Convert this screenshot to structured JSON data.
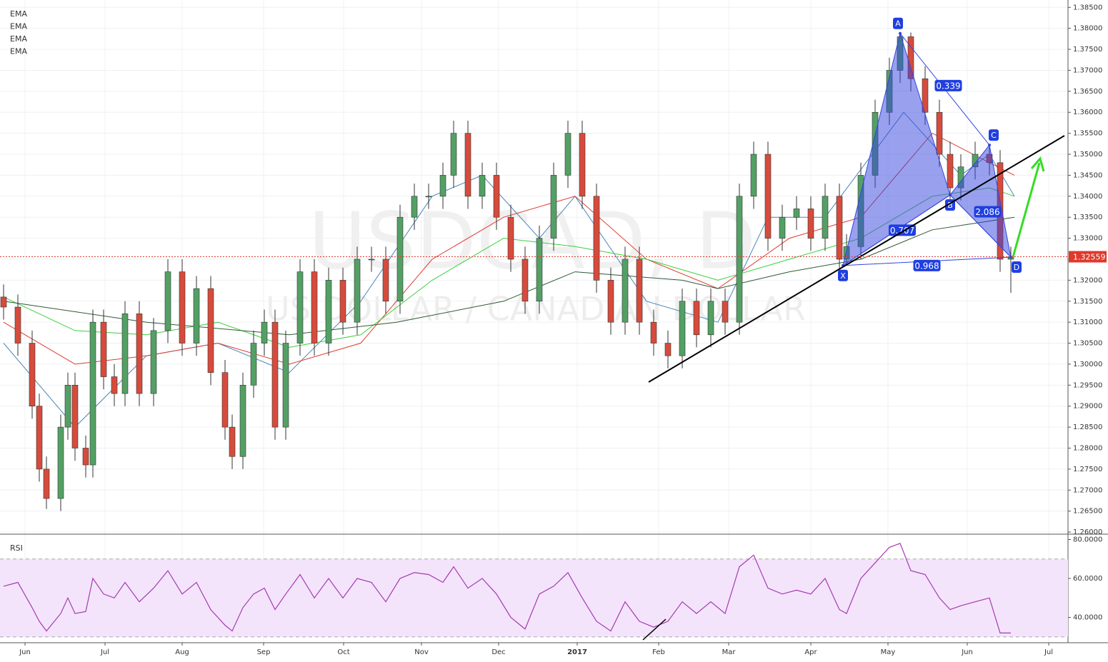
{
  "chart_data": [
    {
      "type": "candlestick",
      "watermark": {
        "symbol": "USDCAD, D",
        "description": "US DOLLAR / CANADIAN DOLLAR"
      },
      "xlim": [
        0,
        298
      ],
      "xticks": [
        {
          "value": 6,
          "label": "Jun"
        },
        {
          "value": 28.4,
          "label": "Jul"
        },
        {
          "value": 50,
          "label": "Aug"
        },
        {
          "value": 72.8,
          "label": "Sep"
        },
        {
          "value": 95.2,
          "label": "Oct"
        },
        {
          "value": 117,
          "label": "Nov"
        },
        {
          "value": 138.6,
          "label": "Dec"
        },
        {
          "value": 160.6,
          "label": "2017"
        },
        {
          "value": 183.4,
          "label": "Feb"
        },
        {
          "value": 203,
          "label": "Mar"
        },
        {
          "value": 226,
          "label": "Apr"
        },
        {
          "value": 247.6,
          "label": "May"
        },
        {
          "value": 269.8,
          "label": "Jun"
        },
        {
          "value": 292.6,
          "label": "Jul"
        }
      ],
      "ylim": [
        1.2595,
        1.3859
      ],
      "yticks": [
        {
          "value": 1.26,
          "label": "1.26000"
        },
        {
          "value": 1.265,
          "label": "1.26500"
        },
        {
          "value": 1.27,
          "label": "1.27000"
        },
        {
          "value": 1.275,
          "label": "1.27500"
        },
        {
          "value": 1.28,
          "label": "1.28000"
        },
        {
          "value": 1.285,
          "label": "1.28500"
        },
        {
          "value": 1.29,
          "label": "1.29000"
        },
        {
          "value": 1.295,
          "label": "1.29500"
        },
        {
          "value": 1.3,
          "label": "1.30000"
        },
        {
          "value": 1.305,
          "label": "1.30500"
        },
        {
          "value": 1.31,
          "label": "1.31000"
        },
        {
          "value": 1.315,
          "label": "1.31500"
        },
        {
          "value": 1.32,
          "label": "1.32000"
        },
        {
          "value": 1.325,
          "label": "1.32500"
        },
        {
          "value": 1.33,
          "label": "1.33000"
        },
        {
          "value": 1.335,
          "label": "1.33500"
        },
        {
          "value": 1.34,
          "label": "1.34000"
        },
        {
          "value": 1.345,
          "label": "1.34500"
        },
        {
          "value": 1.35,
          "label": "1.35000"
        },
        {
          "value": 1.355,
          "label": "1.35500"
        },
        {
          "value": 1.36,
          "label": "1.36000"
        },
        {
          "value": 1.365,
          "label": "1.36500"
        },
        {
          "value": 1.37,
          "label": "1.37000"
        },
        {
          "value": 1.375,
          "label": "1.37500"
        },
        {
          "value": 1.38,
          "label": "1.38000"
        },
        {
          "value": 1.385,
          "label": "1.38500"
        }
      ],
      "grid": true,
      "up_color": "#53a064",
      "down_color": "#d64b3c",
      "last_price": 1.32559,
      "last_price_color": "#e0382b",
      "x": [
        0,
        4,
        8,
        10,
        12,
        16,
        18,
        20,
        23,
        25,
        28,
        31,
        34,
        38,
        42,
        46,
        50,
        54,
        58,
        62,
        64,
        67,
        70,
        73,
        76,
        79,
        83,
        87,
        91,
        95,
        99,
        103,
        107,
        111,
        115,
        119,
        123,
        126,
        130,
        134,
        138,
        142,
        146,
        150,
        154,
        158,
        162,
        166,
        170,
        174,
        178,
        182,
        186,
        190,
        194,
        198,
        202,
        206,
        210,
        214,
        218,
        222,
        226,
        230,
        234,
        236,
        240,
        244,
        248,
        251,
        254,
        258,
        262,
        265,
        268,
        272,
        276,
        279,
        282
      ],
      "open": [
        1.316,
        1.3136,
        1.305,
        1.29,
        1.275,
        1.268,
        1.285,
        1.295,
        1.28,
        1.276,
        1.31,
        1.297,
        1.293,
        1.312,
        1.293,
        1.308,
        1.322,
        1.305,
        1.318,
        1.298,
        1.285,
        1.278,
        1.295,
        1.305,
        1.31,
        1.285,
        1.305,
        1.322,
        1.305,
        1.32,
        1.31,
        1.325,
        1.325,
        1.315,
        1.335,
        1.34,
        1.34,
        1.345,
        1.355,
        1.34,
        1.345,
        1.335,
        1.325,
        1.315,
        1.33,
        1.345,
        1.355,
        1.34,
        1.32,
        1.31,
        1.325,
        1.31,
        1.305,
        1.302,
        1.315,
        1.307,
        1.315,
        1.31,
        1.34,
        1.35,
        1.33,
        1.335,
        1.337,
        1.33,
        1.34,
        1.325,
        1.328,
        1.345,
        1.36,
        1.37,
        1.378,
        1.368,
        1.36,
        1.35,
        1.342,
        1.347,
        1.35,
        1.348,
        1.325
      ],
      "high": [
        1.319,
        1.3166,
        1.308,
        1.293,
        1.278,
        1.288,
        1.298,
        1.298,
        1.283,
        1.313,
        1.313,
        1.3,
        1.315,
        1.315,
        1.311,
        1.325,
        1.325,
        1.321,
        1.321,
        1.301,
        1.288,
        1.298,
        1.308,
        1.313,
        1.313,
        1.308,
        1.325,
        1.325,
        1.323,
        1.323,
        1.328,
        1.328,
        1.328,
        1.338,
        1.343,
        1.343,
        1.348,
        1.358,
        1.358,
        1.348,
        1.348,
        1.338,
        1.328,
        1.333,
        1.348,
        1.358,
        1.358,
        1.343,
        1.323,
        1.328,
        1.328,
        1.313,
        1.308,
        1.318,
        1.318,
        1.318,
        1.318,
        1.343,
        1.353,
        1.353,
        1.338,
        1.34,
        1.34,
        1.343,
        1.343,
        1.331,
        1.348,
        1.363,
        1.373,
        1.3788,
        1.379,
        1.371,
        1.363,
        1.353,
        1.35,
        1.353,
        1.3522,
        1.351,
        1.328
      ],
      "low": [
        1.3106,
        1.302,
        1.287,
        1.272,
        1.2655,
        1.265,
        1.282,
        1.277,
        1.273,
        1.273,
        1.294,
        1.29,
        1.29,
        1.29,
        1.29,
        1.305,
        1.302,
        1.302,
        1.295,
        1.282,
        1.275,
        1.275,
        1.292,
        1.302,
        1.282,
        1.282,
        1.302,
        1.302,
        1.302,
        1.307,
        1.307,
        1.322,
        1.312,
        1.312,
        1.332,
        1.337,
        1.337,
        1.342,
        1.337,
        1.337,
        1.332,
        1.322,
        1.312,
        1.312,
        1.327,
        1.342,
        1.337,
        1.317,
        1.307,
        1.307,
        1.307,
        1.302,
        1.299,
        1.299,
        1.304,
        1.304,
        1.307,
        1.307,
        1.337,
        1.327,
        1.327,
        1.332,
        1.327,
        1.327,
        1.322,
        1.3235,
        1.325,
        1.342,
        1.357,
        1.367,
        1.365,
        1.357,
        1.347,
        1.339,
        1.339,
        1.344,
        1.345,
        1.322,
        1.317
      ],
      "close": [
        1.3136,
        1.305,
        1.29,
        1.275,
        1.268,
        1.285,
        1.295,
        1.28,
        1.276,
        1.31,
        1.297,
        1.293,
        1.312,
        1.293,
        1.308,
        1.322,
        1.305,
        1.318,
        1.298,
        1.285,
        1.278,
        1.295,
        1.305,
        1.31,
        1.285,
        1.305,
        1.322,
        1.305,
        1.32,
        1.31,
        1.325,
        1.325,
        1.315,
        1.335,
        1.34,
        1.34,
        1.345,
        1.355,
        1.34,
        1.345,
        1.335,
        1.325,
        1.315,
        1.33,
        1.345,
        1.355,
        1.34,
        1.32,
        1.31,
        1.325,
        1.31,
        1.305,
        1.302,
        1.315,
        1.307,
        1.315,
        1.31,
        1.34,
        1.35,
        1.33,
        1.335,
        1.337,
        1.33,
        1.34,
        1.325,
        1.328,
        1.345,
        1.36,
        1.37,
        1.378,
        1.368,
        1.36,
        1.35,
        1.342,
        1.347,
        1.35,
        1.348,
        1.325,
        1.3256
      ],
      "series": [
        {
          "name": "EMA",
          "color": "#4a86b8",
          "x": [
            0,
            20,
            40,
            60,
            80,
            100,
            120,
            134,
            150,
            160,
            180,
            200,
            214,
            230,
            252,
            268,
            276,
            283
          ],
          "values": [
            1.305,
            1.285,
            1.302,
            1.305,
            1.298,
            1.315,
            1.34,
            1.345,
            1.33,
            1.34,
            1.315,
            1.31,
            1.335,
            1.335,
            1.36,
            1.345,
            1.35,
            1.34
          ]
        },
        {
          "name": "EMA",
          "color": "#e03a2e",
          "x": [
            0,
            20,
            40,
            60,
            80,
            100,
            120,
            140,
            160,
            180,
            200,
            220,
            240,
            260,
            276,
            283
          ],
          "values": [
            1.31,
            1.3,
            1.302,
            1.305,
            1.3,
            1.305,
            1.325,
            1.335,
            1.34,
            1.325,
            1.318,
            1.33,
            1.335,
            1.355,
            1.348,
            1.345
          ]
        },
        {
          "name": "EMA",
          "color": "#3ccf3c",
          "x": [
            0,
            20,
            40,
            60,
            80,
            100,
            120,
            140,
            160,
            180,
            200,
            220,
            240,
            260,
            276,
            283
          ],
          "values": [
            1.316,
            1.308,
            1.307,
            1.31,
            1.304,
            1.307,
            1.32,
            1.33,
            1.328,
            1.325,
            1.32,
            1.325,
            1.33,
            1.34,
            1.342,
            1.34
          ]
        },
        {
          "name": "EMA",
          "color": "#2f5a35",
          "x": [
            0,
            40,
            80,
            110,
            140,
            160,
            190,
            200,
            220,
            240,
            260,
            283
          ],
          "values": [
            1.315,
            1.31,
            1.307,
            1.31,
            1.315,
            1.322,
            1.32,
            1.318,
            1.322,
            1.325,
            1.332,
            1.335
          ]
        }
      ],
      "pattern": {
        "color": "#3344dd",
        "points": [
          {
            "label": "X",
            "x": 235,
            "y": 1.3235
          },
          {
            "label": "A",
            "x": 251,
            "y": 1.3788
          },
          {
            "label": "B",
            "x": 265,
            "y": 1.3403
          },
          {
            "label": "C",
            "x": 276,
            "y": 1.3522
          },
          {
            "label": "D",
            "x": 282,
            "y": 1.3255
          }
        ],
        "ratios": [
          0.339,
          0.707,
          2.086,
          0.968
        ]
      }
    },
    {
      "type": "line",
      "title": "RSI",
      "color": "#a63ab0",
      "band_color": "#f3e4fb",
      "ylim": [
        27,
        82
      ],
      "yticks": [
        {
          "value": 40,
          "label": "40.0000"
        },
        {
          "value": 60,
          "label": "60.0000"
        },
        {
          "value": 80,
          "label": "80.0000"
        }
      ],
      "levels": [
        30,
        70
      ],
      "x": [
        0,
        4,
        8,
        10,
        12,
        16,
        18,
        20,
        23,
        25,
        28,
        31,
        34,
        38,
        42,
        46,
        50,
        54,
        58,
        62,
        64,
        67,
        70,
        73,
        76,
        79,
        83,
        87,
        91,
        95,
        99,
        103,
        107,
        111,
        115,
        119,
        123,
        126,
        130,
        134,
        138,
        142,
        146,
        150,
        154,
        158,
        162,
        166,
        170,
        174,
        178,
        182,
        186,
        190,
        194,
        198,
        202,
        206,
        210,
        214,
        218,
        222,
        226,
        230,
        234,
        236,
        240,
        244,
        248,
        251,
        254,
        258,
        262,
        265,
        268,
        272,
        276,
        279,
        282
      ],
      "values": [
        56,
        58,
        45,
        38,
        33,
        42,
        50,
        42,
        43,
        60,
        52,
        50,
        58,
        48,
        55,
        64,
        52,
        58,
        44,
        36,
        33,
        45,
        52,
        55,
        44,
        52,
        62,
        50,
        60,
        50,
        60,
        58,
        48,
        60,
        63,
        62,
        58,
        66,
        55,
        60,
        52,
        40,
        34,
        52,
        56,
        63,
        50,
        38,
        33,
        48,
        38,
        35,
        38,
        48,
        42,
        48,
        42,
        66,
        72,
        55,
        52,
        54,
        52,
        60,
        44,
        42,
        60,
        68,
        76,
        78,
        64,
        62,
        50,
        44,
        46,
        48,
        50,
        32,
        32
      ]
    }
  ]
}
